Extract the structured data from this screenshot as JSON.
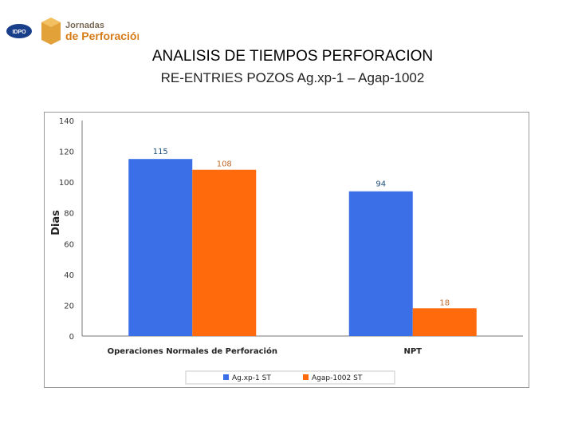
{
  "header": {
    "logo_left": "IDPO",
    "logo_right_line1": "Jornadas",
    "logo_right_line2": "de Perforación"
  },
  "title": "ANALISIS DE TIEMPOS PERFORACION",
  "subtitle": "RE-ENTRIES POZOS Ag.xp-1 – Agap-1002",
  "colors": {
    "series1": "#3b6fe8",
    "series2": "#ff6a0d",
    "label1": "#1f4e79",
    "label2": "#c0692a"
  },
  "chart_data": {
    "type": "bar",
    "ylabel": "Dias",
    "ylim": [
      0,
      140
    ],
    "yticks": [
      0,
      20,
      40,
      60,
      80,
      100,
      120,
      140
    ],
    "categories": [
      "Operaciones Normales de Perforación",
      "NPT"
    ],
    "series": [
      {
        "name": "Ag.xp-1 ST",
        "values": [
          115,
          94
        ]
      },
      {
        "name": "Agap-1002 ST",
        "values": [
          108,
          18
        ]
      }
    ],
    "legend": "bottom",
    "grid": false
  }
}
